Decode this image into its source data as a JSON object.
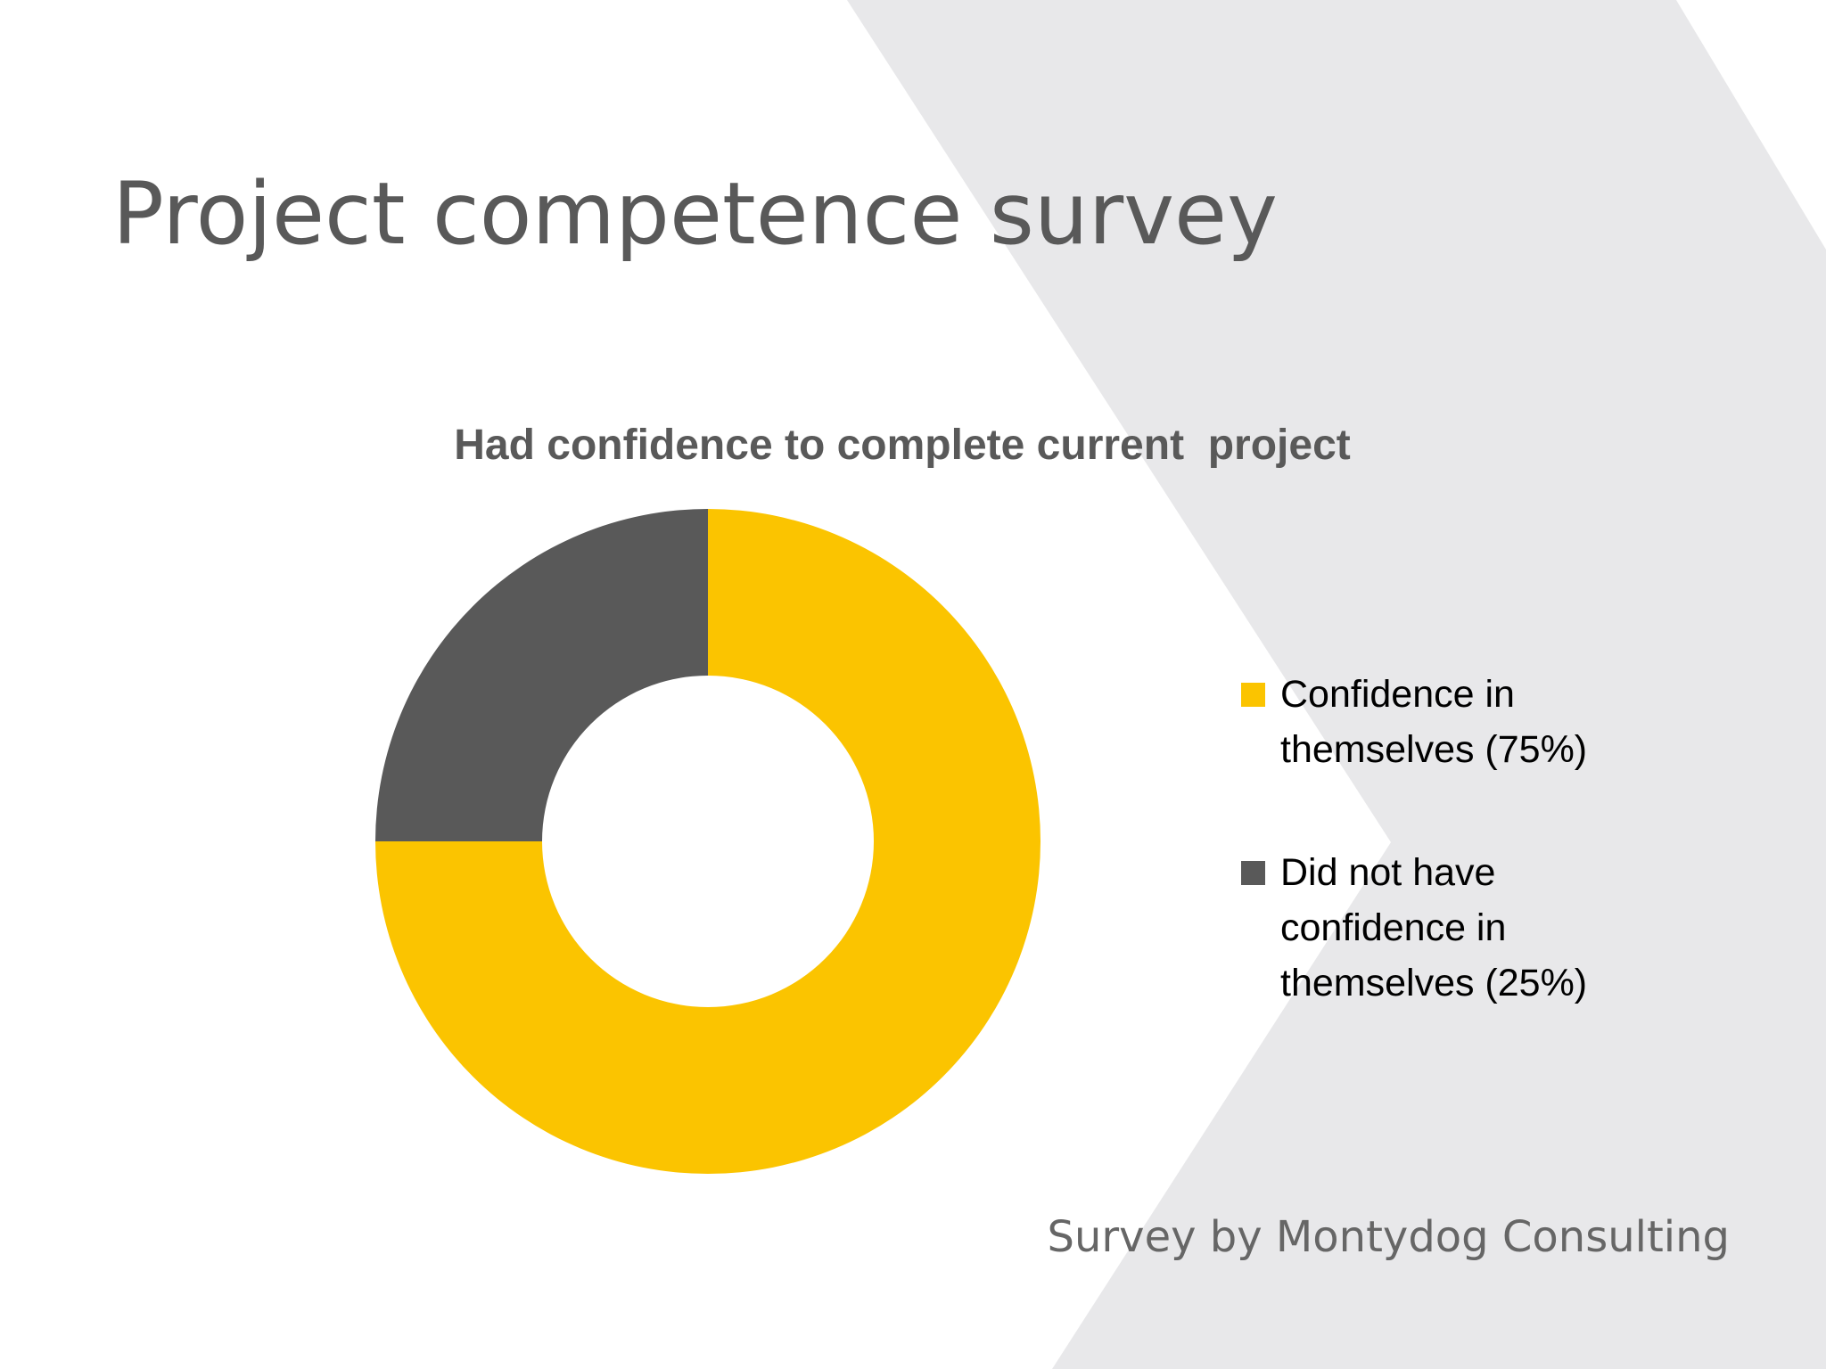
{
  "slide": {
    "title": "Project competence survey",
    "footer": "Survey by Montydog Consulting"
  },
  "colors": {
    "background": "#ffffff",
    "chevron": "#e8e8ea",
    "title_text": "#595959",
    "yes": "#fbc400",
    "no": "#595959"
  },
  "chart_data": {
    "type": "pie",
    "donut": true,
    "title": "Had confidence to complete current  project",
    "categories": [
      "Confidence in themselves (75%)",
      "Did not have confidence in themselves (25%)"
    ],
    "values": [
      75,
      25
    ],
    "colors": [
      "#fbc400",
      "#595959"
    ],
    "legend_position": "right"
  }
}
